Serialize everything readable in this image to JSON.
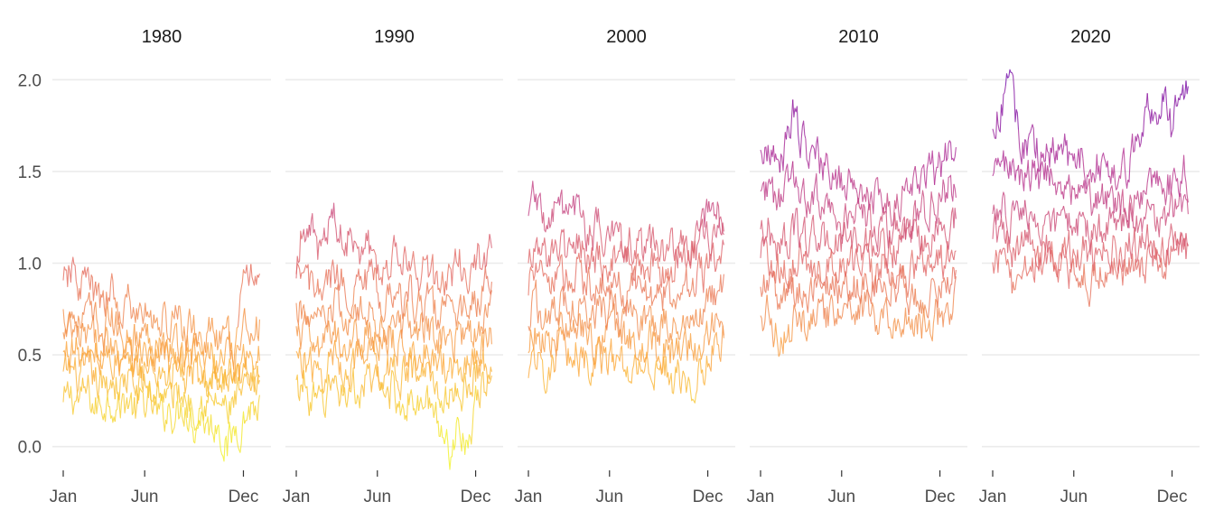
{
  "chart_data": {
    "type": "line",
    "panels": [
      "1980",
      "1990",
      "2000",
      "2010",
      "2020"
    ],
    "x_ticks": [
      "Jan",
      "Jun",
      "Dec"
    ],
    "y_ticks": [
      "0.0",
      "0.5",
      "1.0",
      "1.5",
      "2.0"
    ],
    "ylim": [
      -0.1,
      2.1
    ],
    "x_domain": [
      1,
      366
    ],
    "x_tick_days": [
      1,
      152,
      335
    ],
    "grid": true,
    "legend": "none",
    "color_scale": "plasma (yellow = low, purple = high)",
    "colors": {
      "low": "#f0f921",
      "mid_low": "#fca636",
      "mid": "#e16462",
      "mid_high": "#b12a90",
      "high": "#6a00a8",
      "grid": "#ebebeb",
      "text": "#4d4d4d"
    },
    "series_days": [
      1,
      15,
      32,
      46,
      60,
      74,
      91,
      105,
      121,
      135,
      152,
      166,
      182,
      196,
      213,
      227,
      244,
      258,
      274,
      288,
      305,
      319,
      335,
      349,
      365
    ],
    "series": [
      {
        "panel": "1980",
        "values": [
          0.22,
          0.28,
          0.25,
          0.3,
          0.2,
          0.24,
          0.27,
          0.22,
          0.26,
          0.18,
          0.25,
          0.21,
          0.15,
          0.22,
          0.17,
          0.25,
          0.12,
          0.18,
          0.1,
          0.15,
          -0.02,
          0.1,
          0.15,
          0.22,
          0.2
        ]
      },
      {
        "panel": "1980",
        "values": [
          0.38,
          0.42,
          0.35,
          0.4,
          0.36,
          0.3,
          0.38,
          0.33,
          0.37,
          0.3,
          0.34,
          0.28,
          0.32,
          0.26,
          0.3,
          0.27,
          0.24,
          0.28,
          0.22,
          0.25,
          0.18,
          0.24,
          0.28,
          0.3,
          0.33
        ]
      },
      {
        "panel": "1980",
        "values": [
          0.48,
          0.55,
          0.5,
          0.45,
          0.52,
          0.46,
          0.5,
          0.44,
          0.48,
          0.42,
          0.45,
          0.4,
          0.43,
          0.38,
          0.42,
          0.36,
          0.4,
          0.34,
          0.36,
          0.3,
          0.33,
          0.3,
          0.36,
          0.42,
          0.4
        ]
      },
      {
        "panel": "1980",
        "values": [
          0.58,
          0.62,
          0.55,
          0.6,
          0.56,
          0.52,
          0.58,
          0.5,
          0.55,
          0.48,
          0.52,
          0.47,
          0.5,
          0.45,
          0.48,
          0.44,
          0.46,
          0.4,
          0.43,
          0.38,
          0.4,
          0.37,
          0.45,
          0.55,
          0.5
        ]
      },
      {
        "panel": "1980",
        "values": [
          0.7,
          0.75,
          0.68,
          0.72,
          0.66,
          0.63,
          0.7,
          0.6,
          0.64,
          0.58,
          0.62,
          0.55,
          0.6,
          0.52,
          0.57,
          0.52,
          0.55,
          0.48,
          0.52,
          0.45,
          0.5,
          0.45,
          0.6,
          0.7,
          0.65
        ]
      },
      {
        "panel": "1980",
        "values": [
          0.85,
          0.95,
          0.88,
          0.92,
          0.8,
          0.75,
          0.85,
          0.72,
          0.78,
          0.7,
          0.74,
          0.66,
          0.72,
          0.64,
          0.7,
          0.62,
          0.65,
          0.58,
          0.62,
          0.55,
          0.58,
          0.55,
          0.82,
          1.0,
          0.88
        ]
      },
      {
        "panel": "1990",
        "values": [
          0.3,
          0.35,
          0.25,
          0.2,
          0.3,
          0.35,
          0.28,
          0.33,
          0.3,
          0.35,
          0.32,
          0.28,
          0.33,
          0.22,
          0.28,
          0.2,
          0.25,
          0.15,
          0.1,
          -0.02,
          0.15,
          0.05,
          0.2,
          0.3,
          0.35
        ]
      },
      {
        "panel": "1990",
        "values": [
          0.45,
          0.5,
          0.4,
          0.35,
          0.45,
          0.5,
          0.4,
          0.48,
          0.45,
          0.5,
          0.46,
          0.42,
          0.46,
          0.38,
          0.44,
          0.36,
          0.42,
          0.33,
          0.3,
          0.25,
          0.33,
          0.3,
          0.4,
          0.45,
          0.48
        ]
      },
      {
        "panel": "1990",
        "values": [
          0.58,
          0.62,
          0.55,
          0.5,
          0.58,
          0.62,
          0.55,
          0.6,
          0.58,
          0.63,
          0.58,
          0.55,
          0.58,
          0.5,
          0.56,
          0.5,
          0.55,
          0.46,
          0.48,
          0.42,
          0.48,
          0.45,
          0.52,
          0.56,
          0.6
        ]
      },
      {
        "panel": "1990",
        "values": [
          0.7,
          0.75,
          0.68,
          0.64,
          0.7,
          0.76,
          0.68,
          0.72,
          0.7,
          0.75,
          0.7,
          0.66,
          0.7,
          0.63,
          0.68,
          0.62,
          0.66,
          0.58,
          0.6,
          0.55,
          0.62,
          0.58,
          0.64,
          0.68,
          0.72
        ]
      },
      {
        "panel": "1990",
        "values": [
          0.85,
          0.95,
          0.85,
          0.8,
          0.88,
          0.95,
          0.85,
          0.9,
          0.86,
          0.92,
          0.85,
          0.8,
          0.84,
          0.77,
          0.82,
          0.75,
          0.8,
          0.72,
          0.74,
          0.7,
          0.76,
          0.72,
          0.8,
          0.85,
          0.9
        ]
      },
      {
        "panel": "1990",
        "values": [
          1.0,
          1.25,
          1.15,
          1.05,
          1.2,
          1.25,
          1.1,
          1.18,
          1.08,
          1.12,
          1.02,
          0.98,
          1.05,
          0.95,
          1.0,
          0.92,
          0.98,
          0.9,
          0.92,
          0.88,
          1.02,
          0.98,
          1.0,
          1.02,
          1.04
        ]
      },
      {
        "panel": "2000",
        "values": [
          0.45,
          0.5,
          0.4,
          0.48,
          0.5,
          0.45,
          0.52,
          0.48,
          0.45,
          0.5,
          0.46,
          0.5,
          0.45,
          0.48,
          0.42,
          0.46,
          0.4,
          0.44,
          0.35,
          0.4,
          0.38,
          0.42,
          0.48,
          0.55,
          0.6
        ]
      },
      {
        "panel": "2000",
        "values": [
          0.58,
          0.62,
          0.55,
          0.6,
          0.62,
          0.58,
          0.65,
          0.6,
          0.57,
          0.62,
          0.58,
          0.62,
          0.57,
          0.6,
          0.55,
          0.58,
          0.52,
          0.55,
          0.5,
          0.54,
          0.55,
          0.58,
          0.62,
          0.68,
          0.72
        ]
      },
      {
        "panel": "2000",
        "values": [
          0.72,
          0.78,
          0.7,
          0.75,
          0.78,
          0.72,
          0.8,
          0.74,
          0.7,
          0.76,
          0.72,
          0.75,
          0.7,
          0.73,
          0.68,
          0.72,
          0.66,
          0.7,
          0.65,
          0.7,
          0.72,
          0.75,
          0.8,
          0.85,
          0.88
        ]
      },
      {
        "panel": "2000",
        "values": [
          0.88,
          0.95,
          0.86,
          0.9,
          0.94,
          0.88,
          0.95,
          0.9,
          0.85,
          0.9,
          0.86,
          0.9,
          0.84,
          0.88,
          0.82,
          0.85,
          0.8,
          0.84,
          0.8,
          0.85,
          0.88,
          0.92,
          0.96,
          1.0,
          1.02
        ]
      },
      {
        "panel": "2000",
        "values": [
          1.05,
          1.1,
          1.0,
          1.05,
          1.1,
          1.02,
          1.12,
          1.05,
          1.0,
          1.06,
          1.0,
          1.05,
          0.98,
          1.02,
          0.96,
          1.0,
          0.94,
          0.98,
          0.95,
          1.0,
          1.04,
          1.08,
          1.12,
          1.15,
          1.18
        ]
      },
      {
        "panel": "2000",
        "values": [
          1.3,
          1.4,
          1.2,
          1.25,
          1.3,
          1.18,
          1.28,
          1.2,
          1.15,
          1.2,
          1.12,
          1.16,
          1.08,
          1.12,
          1.05,
          1.1,
          1.02,
          1.06,
          1.04,
          1.1,
          1.15,
          1.2,
          1.25,
          1.28,
          1.25
        ]
      },
      {
        "panel": "2010",
        "values": [
          0.75,
          0.72,
          0.58,
          0.62,
          0.66,
          0.7,
          0.68,
          0.72,
          0.7,
          0.74,
          0.72,
          0.76,
          0.73,
          0.76,
          0.7,
          0.74,
          0.68,
          0.72,
          0.68,
          0.7,
          0.66,
          0.72,
          0.7,
          0.74,
          0.78
        ]
      },
      {
        "panel": "2010",
        "values": [
          0.9,
          0.88,
          0.8,
          0.82,
          0.86,
          0.88,
          0.85,
          0.88,
          0.86,
          0.9,
          0.87,
          0.9,
          0.88,
          0.9,
          0.86,
          0.88,
          0.84,
          0.87,
          0.83,
          0.86,
          0.82,
          0.86,
          0.85,
          0.9,
          0.92
        ]
      },
      {
        "panel": "2010",
        "values": [
          1.05,
          1.02,
          0.95,
          0.98,
          1.0,
          1.02,
          0.98,
          1.02,
          0.98,
          1.02,
          0.98,
          1.02,
          0.98,
          1.02,
          0.97,
          1.0,
          0.96,
          0.98,
          0.95,
          0.98,
          0.96,
          1.0,
          1.0,
          1.04,
          1.06
        ]
      },
      {
        "panel": "2010",
        "values": [
          1.2,
          1.18,
          1.1,
          1.12,
          1.15,
          1.18,
          1.12,
          1.15,
          1.1,
          1.14,
          1.1,
          1.14,
          1.1,
          1.12,
          1.08,
          1.1,
          1.06,
          1.1,
          1.08,
          1.12,
          1.1,
          1.15,
          1.18,
          1.22,
          1.24
        ]
      },
      {
        "panel": "2010",
        "values": [
          1.4,
          1.38,
          1.3,
          1.35,
          1.45,
          1.4,
          1.32,
          1.35,
          1.28,
          1.3,
          1.25,
          1.28,
          1.22,
          1.25,
          1.2,
          1.22,
          1.18,
          1.2,
          1.22,
          1.25,
          1.28,
          1.32,
          1.35,
          1.4,
          1.45
        ]
      },
      {
        "panel": "2010",
        "values": [
          1.62,
          1.65,
          1.55,
          1.6,
          1.85,
          1.7,
          1.58,
          1.6,
          1.48,
          1.5,
          1.42,
          1.45,
          1.38,
          1.4,
          1.35,
          1.38,
          1.32,
          1.36,
          1.38,
          1.42,
          1.45,
          1.48,
          1.52,
          1.6,
          1.55
        ]
      },
      {
        "panel": "2020",
        "values": [
          1.0,
          1.05,
          0.9,
          0.8,
          0.95,
          1.0,
          0.98,
          1.02,
          0.95,
          1.0,
          0.92,
          0.98,
          0.9,
          0.95,
          0.92,
          0.98,
          0.95,
          1.0,
          0.98,
          1.02,
          1.0,
          0.95,
          1.0,
          1.05,
          1.02
        ]
      },
      {
        "panel": "2020",
        "values": [
          1.12,
          1.2,
          1.1,
          1.05,
          1.12,
          1.15,
          1.1,
          1.12,
          1.05,
          1.1,
          1.05,
          1.1,
          1.02,
          1.08,
          1.05,
          1.1,
          1.05,
          1.12,
          1.1,
          1.15,
          1.12,
          1.08,
          1.1,
          1.12,
          1.1
        ]
      },
      {
        "panel": "2020",
        "values": [
          1.25,
          1.35,
          1.25,
          1.2,
          1.28,
          1.3,
          1.25,
          1.28,
          1.2,
          1.25,
          1.18,
          1.22,
          1.15,
          1.2,
          1.18,
          1.22,
          1.18,
          1.25,
          1.22,
          1.28,
          1.25,
          1.22,
          1.28,
          1.3,
          1.28
        ]
      },
      {
        "panel": "2020",
        "values": [
          1.45,
          1.6,
          1.5,
          1.4,
          1.45,
          1.5,
          1.45,
          1.48,
          1.38,
          1.42,
          1.35,
          1.38,
          1.32,
          1.36,
          1.3,
          1.34,
          1.28,
          1.32,
          1.3,
          1.35,
          1.4,
          1.42,
          1.45,
          1.5,
          1.48
        ]
      },
      {
        "panel": "2020",
        "values": [
          1.7,
          1.85,
          2.0,
          1.75,
          1.65,
          1.7,
          1.6,
          1.65,
          1.55,
          1.6,
          1.52,
          1.58,
          1.5,
          1.55,
          1.48,
          1.52,
          1.5,
          1.58,
          1.7,
          1.85,
          1.8,
          1.9,
          1.7,
          1.95,
          1.9
        ]
      }
    ]
  }
}
